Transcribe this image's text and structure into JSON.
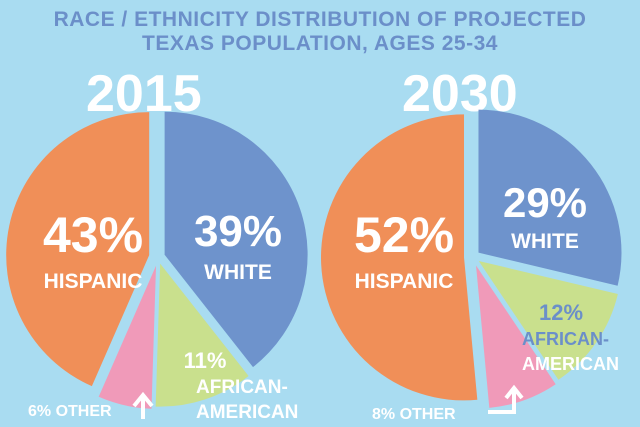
{
  "title_line1": "RACE / ETHNICITY DISTRIBUTION OF PROJECTED",
  "title_line2": "TEXAS POPULATION, AGES 25-34",
  "colors": {
    "hispanic": "#f08f58",
    "white": "#6e93cc",
    "african_american": "#c9e08d",
    "other": "#f09ab9",
    "label_blue": "#6b8fc9"
  },
  "chart_data": [
    {
      "type": "pie",
      "title": "2015",
      "slices": [
        {
          "name": "White",
          "value": 39,
          "pct_label": "39%",
          "label": "WHITE"
        },
        {
          "name": "African-American",
          "value": 11,
          "pct_label": "11%",
          "label1": "AFRICAN-",
          "label2": "AMERICAN"
        },
        {
          "name": "Other",
          "value": 6,
          "pct_label": "6% OTHER"
        },
        {
          "name": "Hispanic",
          "value": 43,
          "pct_label": "43%",
          "label": "HISPANIC"
        }
      ]
    },
    {
      "type": "pie",
      "title": "2030",
      "slices": [
        {
          "name": "White",
          "value": 29,
          "pct_label": "29%",
          "label": "WHITE"
        },
        {
          "name": "African-American",
          "value": 12,
          "pct_label": "12%",
          "label1": "AFRICAN-",
          "label2": "AMERICAN"
        },
        {
          "name": "Other",
          "value": 8,
          "pct_label": "8% OTHER"
        },
        {
          "name": "Hispanic",
          "value": 52,
          "pct_label": "52%",
          "label": "HISPANIC"
        }
      ]
    }
  ]
}
